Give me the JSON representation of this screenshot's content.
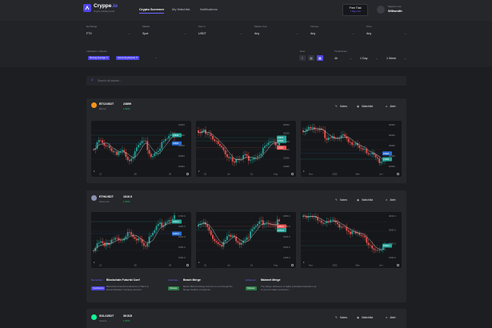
{
  "app": {
    "name": "Cryppe",
    "name_suffix": ".io",
    "tagline": "Crypto trading tools"
  },
  "nav": [
    {
      "label": "Crypto Screener",
      "active": true
    },
    {
      "label": "My Watchlist",
      "active": false
    },
    {
      "label": "Notifications",
      "active": false
    }
  ],
  "trial": {
    "line1": "Free Trial",
    "line2": "7 Days left"
  },
  "user": {
    "greeting": "Signed in as",
    "name": "Willsmith"
  },
  "filters": [
    {
      "label": "Exchange",
      "value": "FTX"
    },
    {
      "label": "Market",
      "value": "Spot"
    },
    {
      "label": "Pair In",
      "value": "USDT"
    },
    {
      "label": "Market Cap",
      "value": "Any"
    },
    {
      "label": "Volume",
      "value": "Any"
    },
    {
      "label": "Price",
      "value": "Any"
    }
  ],
  "indicators": {
    "label": "Indicators / Objects",
    "tags": [
      "Moving Average ✕",
      "Upcoming Events ✕"
    ]
  },
  "row_label": "Row",
  "timeframes": {
    "label": "Timeframes",
    "values": [
      "4h",
      "1 Day",
      "1 Week"
    ]
  },
  "search": {
    "placeholder": "Search all assets..."
  },
  "actions": {
    "notes": "Notes",
    "watchlist": "Watchlist",
    "alert": "Alert"
  },
  "cards": [
    {
      "pair": "BTC/USDT",
      "price": "23899",
      "name": "Bitcoin",
      "change": "1.95%",
      "icon_color": "#f7931a",
      "charts": [
        {
          "y_ticks": [
            "24000",
            "23500",
            "23000",
            "22500",
            "22000"
          ],
          "x_ticks": [
            "21",
            "28",
            "29"
          ],
          "tags": [
            {
              "text": "23800",
              "color": "#26a69a",
              "y": 0.3
            },
            {
              "text": "22900",
              "color": "#2b6fd6",
              "y": 0.47
            }
          ],
          "trend": [
            0.6,
            0.35,
            0.5,
            0.62,
            0.72,
            0.55,
            0.82,
            0.7,
            0.5,
            0.45,
            0.75,
            0.6,
            0.45,
            0.35,
            0.3
          ]
        },
        {
          "y_ticks": [
            "26000",
            "25000",
            "24000",
            "23000",
            "22000",
            "21000"
          ],
          "x_ticks": [
            "15",
            "Jul",
            "15",
            "Aug"
          ],
          "tags": [
            {
              "text": "23870",
              "color": "#26a69a",
              "y": 0.35
            },
            {
              "text": "23500",
              "color": "#26a69a",
              "y": 0.42
            },
            {
              "text": "22000",
              "color": "#ef5350",
              "y": 0.56
            }
          ],
          "trend": [
            0.2,
            0.18,
            0.35,
            0.45,
            0.55,
            0.7,
            0.8,
            0.85,
            0.75,
            0.78,
            0.72,
            0.65,
            0.5,
            0.48,
            0.45
          ]
        },
        {
          "y_ticks": [
            "60000",
            "50000",
            "40000",
            "30000",
            "20000"
          ],
          "x_ticks": [
            "Nov",
            "2022",
            "Mar",
            "Jun"
          ],
          "tags": [
            {
              "text": "23900",
              "color": "#2b6fd6",
              "y": 0.68
            },
            {
              "text": "21000",
              "color": "#26a69a",
              "y": 0.8
            }
          ],
          "trend": [
            0.2,
            0.1,
            0.25,
            0.18,
            0.35,
            0.3,
            0.4,
            0.32,
            0.5,
            0.45,
            0.55,
            0.7,
            0.72,
            0.85,
            0.8
          ]
        }
      ]
    },
    {
      "pair": "ETH/USDT",
      "price": "1616.9",
      "name": "Ethereum",
      "change": "1.95%",
      "icon_color": "#8a92b2",
      "charts": [
        {
          "y_ticks": [
            "1700.0",
            "1650.0",
            "1600.0",
            "1550.0",
            "1500.0"
          ],
          "x_ticks": [
            "21",
            "28",
            "29"
          ],
          "tags": [
            {
              "text": "1650.0",
              "color": "#26a69a",
              "y": 0.2
            },
            {
              "text": "1600.0",
              "color": "#2b6fd6",
              "y": 0.45
            }
          ],
          "trend": [
            0.8,
            0.65,
            0.72,
            0.58,
            0.5,
            0.62,
            0.45,
            0.55,
            0.52,
            0.7,
            0.5,
            0.3,
            0.25,
            0.15,
            0.1
          ]
        },
        {
          "y_ticks": [
            "1800.0",
            "1700.0",
            "1600.0",
            "1500.0",
            "1400.0"
          ],
          "x_ticks": [
            "15",
            "Jul",
            "15",
            "Aug"
          ],
          "tags": [
            {
              "text": "1650.0",
              "color": "#ef5350",
              "y": 0.3
            },
            {
              "text": "1616.9",
              "color": "#26a69a",
              "y": 0.38
            }
          ],
          "trend": [
            0.3,
            0.25,
            0.45,
            0.6,
            0.7,
            0.55,
            0.5,
            0.65,
            0.55,
            0.45,
            0.3,
            0.22,
            0.2,
            0.25,
            0.2
          ]
        },
        {
          "y_ticks": [
            "4000.0",
            "3000.0",
            "2000.0",
            "1000.0"
          ],
          "x_ticks": [
            "Nov",
            "2022",
            "Mar",
            "Jun"
          ],
          "tags": [
            {
              "text": "1600.0",
              "color": "#26a69a",
              "y": 0.7
            }
          ],
          "trend": [
            0.1,
            0.15,
            0.05,
            0.2,
            0.25,
            0.18,
            0.3,
            0.28,
            0.4,
            0.45,
            0.5,
            0.62,
            0.72,
            0.82,
            0.75
          ]
        }
      ],
      "news": [
        {
          "source": "Blockchain",
          "title": "Blockchain Futurist Conf",
          "badge": "Conference",
          "badge_color": "#4f46e5",
          "desc": "Blockchain Futurist Conference in Miami & Decentralization Company, Eventsi..."
        },
        {
          "source": "Coinbase",
          "title": "Beach Merge",
          "badge": "Release",
          "badge_color": "#2f7d4a",
          "desc": "Beach Mainnet Merge Summer to run through the Merge hardfork compati da..."
        },
        {
          "source": "Ethereum",
          "title": "Mainnet Merge",
          "badge": "Release",
          "badge_color": "#2f7d4a",
          "desc": "The Merge: Ethereum is highly anticipated transition out of proof-of-stake consensus..."
        }
      ]
    },
    {
      "pair": "SOL/USDT",
      "price": "39.515",
      "name": "Solana",
      "change": "1.95%",
      "icon_color": "#14f195"
    }
  ]
}
